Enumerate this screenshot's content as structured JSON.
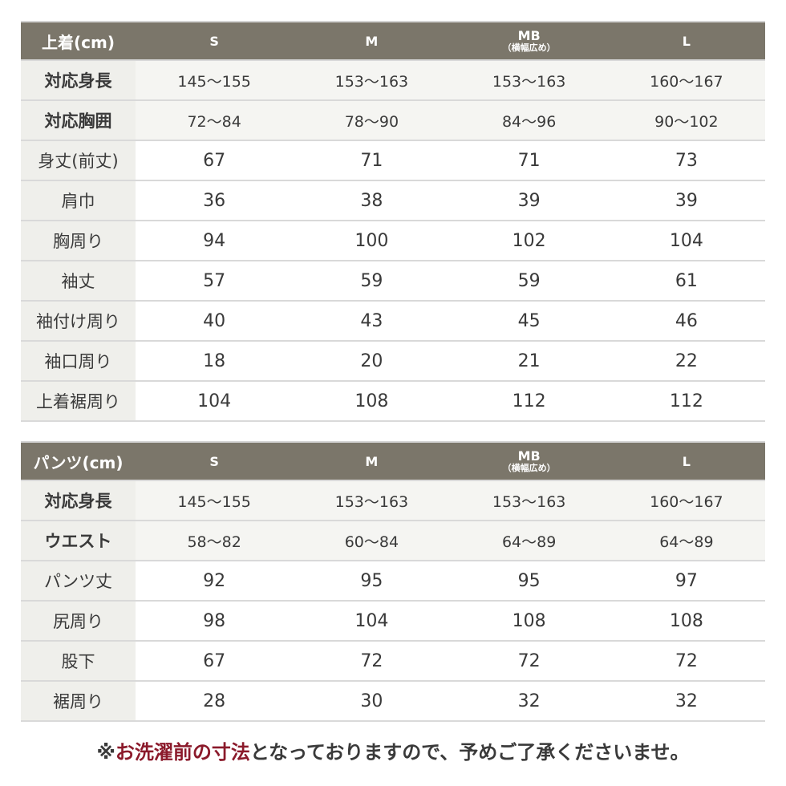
{
  "top_table": {
    "corner": "上着(cm)",
    "sizes": [
      "S",
      "M",
      "MB",
      "L"
    ],
    "mb_subtitle": "（横幅広め）",
    "rows": [
      {
        "label": "対応身長",
        "strong": true,
        "values": [
          "145〜155",
          "153〜163",
          "153〜163",
          "160〜167"
        ]
      },
      {
        "label": "対応胸囲",
        "strong": true,
        "values": [
          "72〜84",
          "78〜90",
          "84〜96",
          "90〜102"
        ]
      },
      {
        "label": "身丈(前丈)",
        "strong": false,
        "values": [
          "67",
          "71",
          "71",
          "73"
        ]
      },
      {
        "label": "肩巾",
        "strong": false,
        "values": [
          "36",
          "38",
          "39",
          "39"
        ]
      },
      {
        "label": "胸周り",
        "strong": false,
        "values": [
          "94",
          "100",
          "102",
          "104"
        ]
      },
      {
        "label": "袖丈",
        "strong": false,
        "values": [
          "57",
          "59",
          "59",
          "61"
        ]
      },
      {
        "label": "袖付け周り",
        "strong": false,
        "values": [
          "40",
          "43",
          "45",
          "46"
        ]
      },
      {
        "label": "袖口周り",
        "strong": false,
        "values": [
          "18",
          "20",
          "21",
          "22"
        ]
      },
      {
        "label": "上着裾周り",
        "strong": false,
        "values": [
          "104",
          "108",
          "112",
          "112"
        ]
      }
    ]
  },
  "bottom_table": {
    "corner": "パンツ(cm)",
    "sizes": [
      "S",
      "M",
      "MB",
      "L"
    ],
    "mb_subtitle": "（横幅広め）",
    "rows": [
      {
        "label": "対応身長",
        "strong": true,
        "values": [
          "145〜155",
          "153〜163",
          "153〜163",
          "160〜167"
        ]
      },
      {
        "label": "ウエスト",
        "strong": true,
        "values": [
          "58〜82",
          "60〜84",
          "64〜89",
          "64〜89"
        ]
      },
      {
        "label": "パンツ丈",
        "strong": false,
        "values": [
          "92",
          "95",
          "95",
          "97"
        ]
      },
      {
        "label": "尻周り",
        "strong": false,
        "values": [
          "98",
          "104",
          "108",
          "108"
        ]
      },
      {
        "label": "股下",
        "strong": false,
        "values": [
          "67",
          "72",
          "72",
          "72"
        ]
      },
      {
        "label": "裾周り",
        "strong": false,
        "values": [
          "28",
          "30",
          "32",
          "32"
        ]
      }
    ]
  },
  "footnote": {
    "prefix": "※",
    "highlight": "お洗濯前の寸法",
    "rest": "となっておりますので、予めご了承くださいませ。"
  },
  "colors": {
    "header_bg": "#7b766a",
    "label_bg": "#efefeb",
    "accent": "#8b1a2b"
  }
}
